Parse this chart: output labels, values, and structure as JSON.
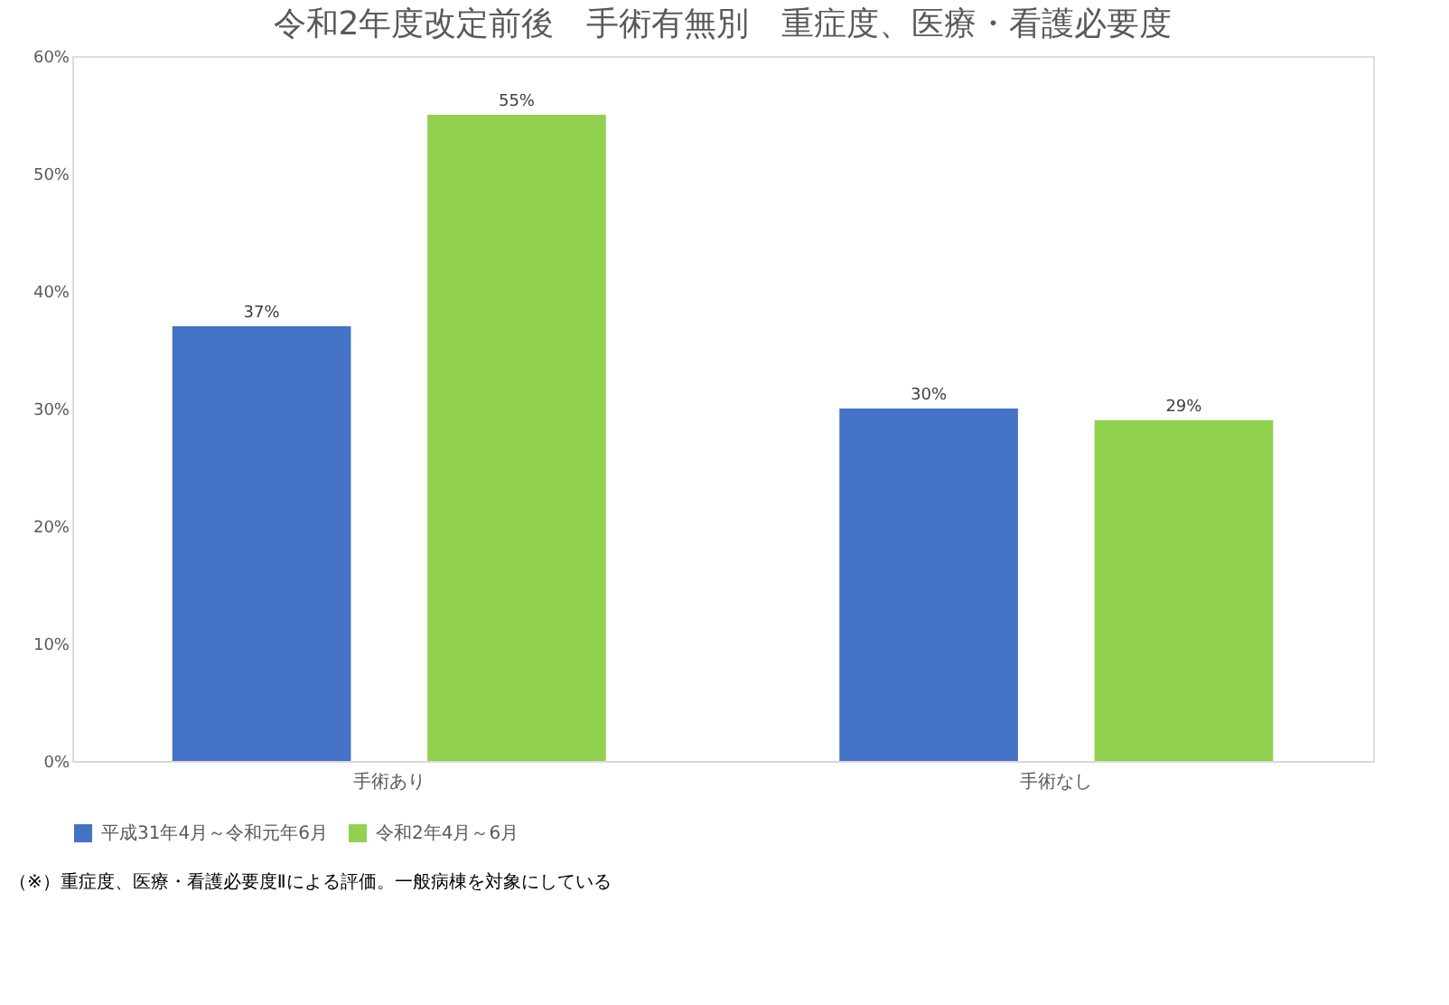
{
  "chart_data": {
    "type": "bar",
    "title": "令和2年度改定前後　手術有無別　重症度、医療・看護必要度",
    "categories": [
      "手術あり",
      "手術なし"
    ],
    "series": [
      {
        "name": "平成31年4月～令和元年6月",
        "color": "#4472c4",
        "values": [
          37,
          30
        ],
        "value_labels": [
          "37%",
          "30%"
        ]
      },
      {
        "name": "令和2年4月～6月",
        "color": "#92d050",
        "values": [
          55,
          29
        ],
        "value_labels": [
          "55%",
          "29%"
        ]
      }
    ],
    "ylim": [
      0,
      60
    ],
    "yticks": [
      {
        "value": 0,
        "label": "0%"
      },
      {
        "value": 10,
        "label": "10%"
      },
      {
        "value": 20,
        "label": "20%"
      },
      {
        "value": 30,
        "label": "30%"
      },
      {
        "value": 40,
        "label": "40%"
      },
      {
        "value": 50,
        "label": "50%"
      },
      {
        "value": 60,
        "label": "60%"
      }
    ],
    "grid": false,
    "legend": "bottom",
    "annotations": [
      "（※）重症度、医療・看護必要度Ⅱによる評価。一般病棟を対象にしている"
    ]
  }
}
